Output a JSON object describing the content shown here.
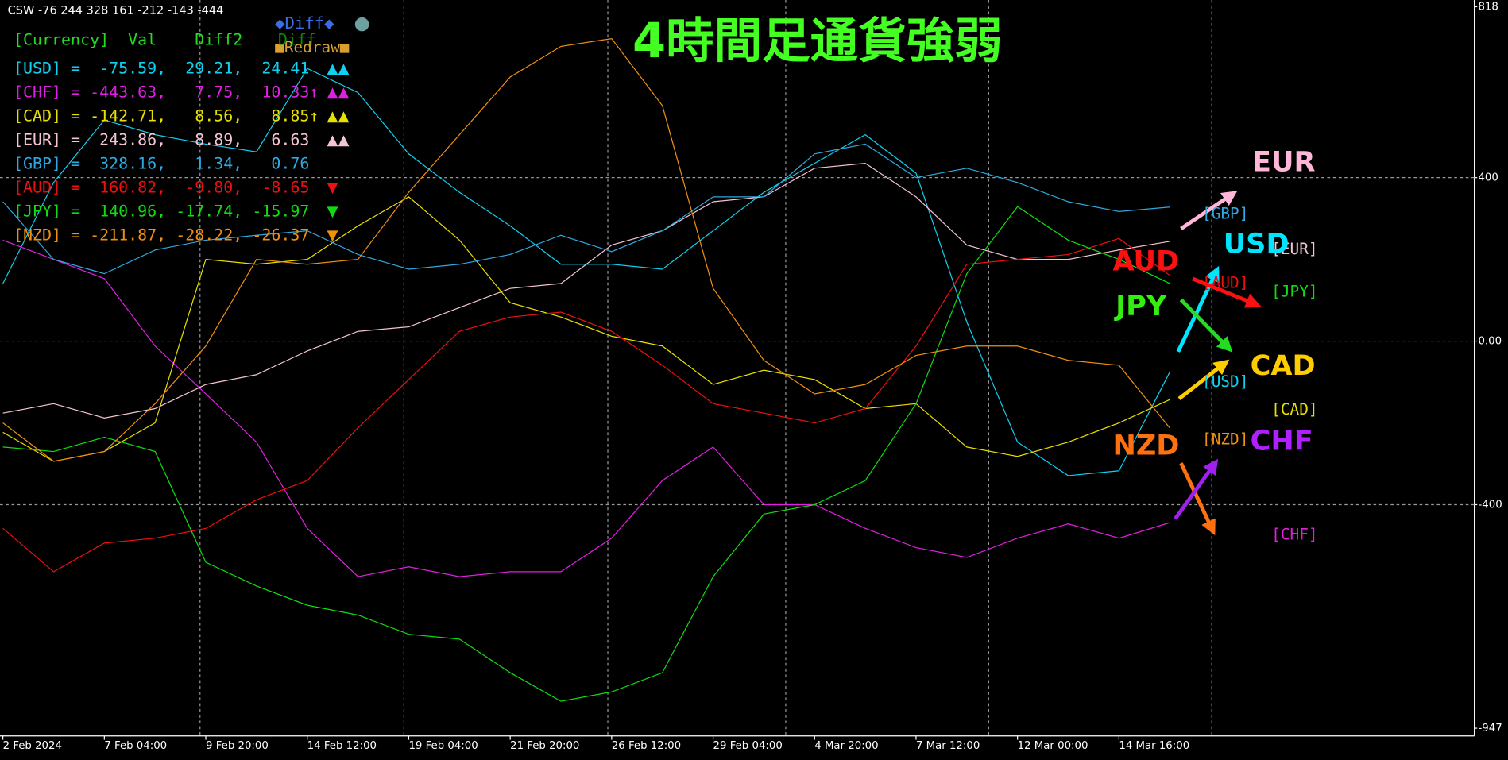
{
  "chart_data": {
    "type": "line",
    "header_text": "CSW -76 244 328 161 -212 -143 -444",
    "title": "4時間足通貨強弱",
    "buttons": {
      "diff": "◆Diff◆",
      "dot": "●",
      "redraw": "■Redraw■"
    },
    "table_header": "[Currency]  Val    Diff2",
    "table_header_hidden": "Diff",
    "table": [
      {
        "text": "[USD] =  -75.59,  29.21,  24.41",
        "signal": "▲▲"
      },
      {
        "text": "[CHF] = -443.63,   7.75,  10.33↑",
        "signal": "▲▲"
      },
      {
        "text": "[CAD] = -142.71,   8.56,   8.85↑",
        "signal": "▲▲"
      },
      {
        "text": "[EUR] =  243.86,   8.89,   6.63",
        "signal": "▲▲"
      },
      {
        "text": "[GBP] =  328.16,   1.34,   0.76",
        "signal": ""
      },
      {
        "text": "[AUD] =  160.82,  -9.80,  -8.65",
        "signal": "▼"
      },
      {
        "text": "[JPY] =  140.96, -17.74, -15.97",
        "signal": "▼"
      },
      {
        "text": "[NZD] = -211.87, -28.22, -26.37",
        "signal": "▼"
      }
    ],
    "categories": [
      "2 Feb 2024",
      null,
      "7 Feb 04:00",
      null,
      "9 Feb 20:00",
      null,
      "14 Feb 12:00",
      null,
      "19 Feb 04:00",
      null,
      "21 Feb 20:00",
      null,
      "26 Feb 12:00",
      null,
      "29 Feb 04:00",
      null,
      "4 Mar 20:00",
      null,
      "7 Mar 12:00",
      null,
      "12 Mar 00:00",
      null,
      "14 Mar 16:00",
      null
    ],
    "ylim": [
      -947,
      818
    ],
    "yticks": [
      818,
      400,
      {
        "value": 0,
        "label": "0.00"
      },
      -400,
      -947
    ],
    "grid": true,
    "series": [
      {
        "name": "[USD]",
        "color": "#10d0f0",
        "values": [
          141,
          388,
          541,
          505,
          482,
          463,
          667,
          608,
          458,
          364,
          282,
          188,
          188,
          176,
          270,
          364,
          435,
          505,
          411,
          47,
          -247,
          -329,
          -317,
          -76
        ]
      },
      {
        "name": "[CHF]",
        "color": "#e020e0",
        "values": [
          247,
          200,
          153,
          -12,
          -129,
          -247,
          -458,
          -576,
          -552,
          -576,
          -564,
          -564,
          -482,
          -341,
          -259,
          -400,
          -400,
          -458,
          -505,
          -529,
          -482,
          -447,
          -482,
          -444
        ]
      },
      {
        "name": "[CAD]",
        "color": "#e8e000",
        "values": [
          -223,
          -294,
          -270,
          -200,
          200,
          188,
          200,
          282,
          353,
          247,
          94,
          59,
          12,
          -12,
          -106,
          -71,
          -94,
          -165,
          -153,
          -259,
          -282,
          -247,
          -200,
          -143
        ]
      },
      {
        "name": "[EUR]",
        "color": "#f4c4d4",
        "values": [
          -176,
          -153,
          -188,
          -165,
          -106,
          -82,
          -24,
          24,
          35,
          82,
          129,
          141,
          235,
          270,
          341,
          353,
          423,
          435,
          353,
          235,
          200,
          200,
          223,
          244
        ]
      },
      {
        "name": "[GBP]",
        "color": "#30a8e0",
        "values": [
          341,
          200,
          165,
          223,
          247,
          259,
          270,
          212,
          176,
          188,
          212,
          259,
          219,
          270,
          353,
          353,
          458,
          482,
          400,
          423,
          388,
          341,
          317,
          328
        ]
      },
      {
        "name": "[AUD]",
        "color": "#ee1010",
        "values": [
          -458,
          -564,
          -494,
          -482,
          -458,
          -388,
          -341,
          -212,
          -94,
          24,
          59,
          71,
          24,
          -59,
          -153,
          -176,
          -200,
          -165,
          -12,
          188,
          200,
          212,
          251,
          161
        ]
      },
      {
        "name": "[JPY]",
        "color": "#10dd10",
        "values": [
          -259,
          -270,
          -235,
          -270,
          -541,
          -599,
          -646,
          -670,
          -717,
          -729,
          -811,
          -881,
          -858,
          -811,
          -576,
          -423,
          -400,
          -341,
          -153,
          165,
          329,
          247,
          200,
          141
        ]
      },
      {
        "name": "[NZD]",
        "color": "#f09010",
        "values": [
          -200,
          -294,
          -270,
          -153,
          -12,
          200,
          188,
          200,
          364,
          505,
          646,
          721,
          740,
          576,
          129,
          -47,
          -129,
          -106,
          -35,
          -12,
          -12,
          -47,
          -59,
          -212
        ]
      }
    ],
    "annotations": [
      {
        "text": "EUR",
        "color": "#ffb6d9"
      },
      {
        "text": "USD",
        "color": "#00e5ff"
      },
      {
        "text": "AUD",
        "color": "#ff1010"
      },
      {
        "text": "JPY",
        "color": "#33ee11"
      },
      {
        "text": "CAD",
        "color": "#ffcc00"
      },
      {
        "text": "NZD",
        "color": "#ff7010"
      },
      {
        "text": "CHF",
        "color": "#b020ff"
      }
    ]
  }
}
